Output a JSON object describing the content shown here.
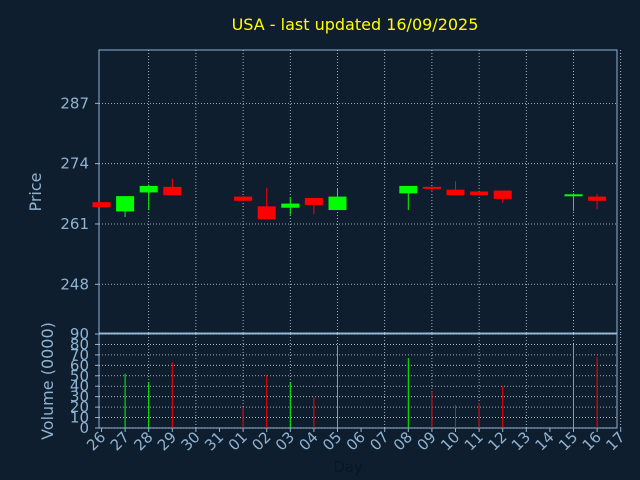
{
  "chart_data": [
    {
      "type": "candlestick",
      "title": "USA - last updated 16/09/2025",
      "ylabel": "Price",
      "yticks": [
        248,
        261,
        274,
        287
      ],
      "ylim": [
        237.5,
        298.5
      ],
      "grid": true,
      "colors": {
        "up": "#00ff00",
        "down": "#ff0000",
        "title": "#ffff00",
        "axis_text": "#8fb3d0",
        "frame": "#8fb3d0"
      },
      "x": [
        "26",
        "27",
        "28",
        "29",
        "30",
        "31",
        "01",
        "02",
        "03",
        "04",
        "05",
        "06",
        "07",
        "08",
        "09",
        "10",
        "11",
        "12",
        "13",
        "14",
        "15",
        "16",
        "17"
      ],
      "candles": [
        {
          "day": "26",
          "open": 265.7,
          "close": 264.6,
          "high": 265.7,
          "low": 264.6
        },
        {
          "day": "27",
          "open": 263.7,
          "close": 267.0,
          "high": 267.0,
          "low": 262.5
        },
        {
          "day": "28",
          "open": 267.8,
          "close": 269.2,
          "high": 269.5,
          "low": 264.0
        },
        {
          "day": "29",
          "open": 269.0,
          "close": 267.2,
          "high": 270.8,
          "low": 267.2
        },
        {
          "day": "01",
          "open": 266.9,
          "close": 266.0,
          "high": 266.9,
          "low": 266.0
        },
        {
          "day": "02",
          "open": 264.8,
          "close": 262.0,
          "high": 268.8,
          "low": 262.0
        },
        {
          "day": "03",
          "open": 264.5,
          "close": 265.4,
          "high": 266.8,
          "low": 263.0
        },
        {
          "day": "04",
          "open": 266.6,
          "close": 265.1,
          "high": 266.6,
          "low": 263.1
        },
        {
          "day": "05",
          "open": 264.0,
          "close": 266.9,
          "high": 268.6,
          "low": 264.0
        },
        {
          "day": "08",
          "open": 267.6,
          "close": 269.2,
          "high": 269.2,
          "low": 264.0
        },
        {
          "day": "09",
          "open": 269.0,
          "close": 268.6,
          "high": 269.0,
          "low": 268.0
        },
        {
          "day": "10",
          "open": 268.4,
          "close": 267.2,
          "high": 270.2,
          "low": 267.2
        },
        {
          "day": "11",
          "open": 268.0,
          "close": 267.2,
          "high": 268.0,
          "low": 267.2
        },
        {
          "day": "12",
          "open": 268.2,
          "close": 266.4,
          "high": 268.2,
          "low": 265.5
        },
        {
          "day": "15",
          "open": 267.0,
          "close": 267.4,
          "high": 267.6,
          "low": 263.8
        },
        {
          "day": "16",
          "open": 266.9,
          "close": 266.0,
          "high": 267.4,
          "low": 264.2
        }
      ]
    },
    {
      "type": "bar",
      "ylabel": "Volume (0000)",
      "xlabel": "Day",
      "yticks": [
        0,
        10,
        20,
        30,
        40,
        50,
        60,
        70,
        80,
        90
      ],
      "ylim": [
        0,
        90
      ],
      "grid": true,
      "categories": [
        "26",
        "27",
        "28",
        "29",
        "30",
        "31",
        "01",
        "02",
        "03",
        "04",
        "05",
        "06",
        "07",
        "08",
        "09",
        "10",
        "11",
        "12",
        "13",
        "14",
        "15",
        "16",
        "17"
      ],
      "values": [
        0,
        52,
        44,
        63,
        0,
        0,
        20,
        51,
        44,
        29,
        79,
        0,
        0,
        67,
        35,
        22,
        24,
        40,
        0,
        0,
        80,
        68,
        0
      ],
      "bar_colors": [
        "",
        "up",
        "up",
        "down",
        "",
        "",
        "down",
        "down",
        "up",
        "down",
        "up",
        "",
        "",
        "up",
        "down",
        "down",
        "down",
        "down",
        "",
        "",
        "up",
        "down",
        ""
      ]
    }
  ]
}
